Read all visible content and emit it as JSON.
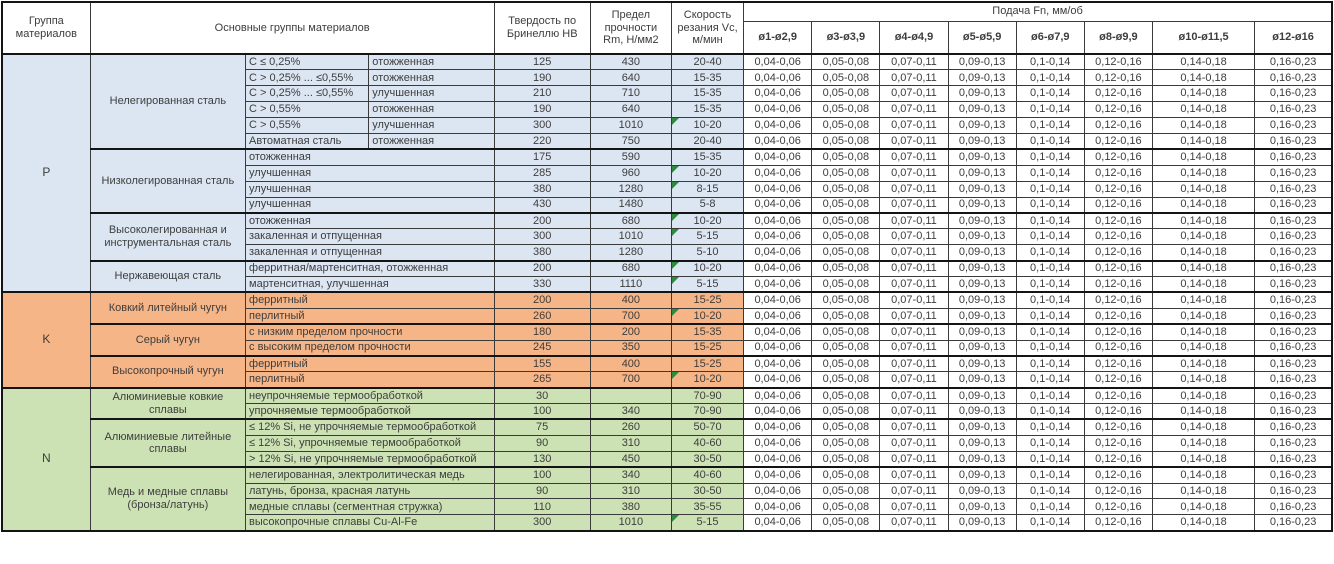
{
  "header": {
    "col_group": "Группа материалов",
    "col_main": "Основные группы материалов",
    "col_hb": "Твердость по Бринеллю HB",
    "col_rm": "Предел прочности Rm, Н/мм2",
    "col_vc": "Скорость резания Vc, м/мин",
    "feed_title": "Подача Fn, мм/об",
    "feed_cols": [
      "ø1-ø2,9",
      "ø3-ø3,9",
      "ø4-ø4,9",
      "ø5-ø5,9",
      "ø6-ø7,9",
      "ø8-ø9,9",
      "ø10-ø11,5",
      "ø12-ø16"
    ]
  },
  "colors": {
    "p": "#dce6f2",
    "k": "#f6b587",
    "n": "#cde2b4",
    "marker": "#2d8a3e",
    "border": "#141414",
    "text": "#3d3d3d"
  },
  "feed_values": [
    "0,04-0,06",
    "0,05-0,08",
    "0,07-0,11",
    "0,09-0,13",
    "0,1-0,14",
    "0,12-0,16",
    "0,14-0,18",
    "0,16-0,23"
  ],
  "groups": [
    {
      "code": "P",
      "color_key": "p",
      "subgroups": [
        {
          "name": "Нелегированная сталь",
          "split": true,
          "rows": [
            {
              "c1": "C ≤ 0,25%",
              "c2": "отожженная",
              "hb": "125",
              "rm": "430",
              "vc": "20-40",
              "mark": false
            },
            {
              "c1": "C > 0,25% ... ≤0,55%",
              "c2": "отожженная",
              "hb": "190",
              "rm": "640",
              "vc": "15-35",
              "mark": false
            },
            {
              "c1": "C > 0,25% ... ≤0,55%",
              "c2": "улучшенная",
              "hb": "210",
              "rm": "710",
              "vc": "15-35",
              "mark": false
            },
            {
              "c1": "C > 0,55%",
              "c2": "отожженная",
              "hb": "190",
              "rm": "640",
              "vc": "15-35",
              "mark": false
            },
            {
              "c1": "C > 0,55%",
              "c2": "улучшенная",
              "hb": "300",
              "rm": "1010",
              "vc": "10-20",
              "mark": true
            },
            {
              "c1": "Автоматная сталь",
              "c2": "отожженная",
              "hb": "220",
              "rm": "750",
              "vc": "20-40",
              "mark": false
            }
          ]
        },
        {
          "name": "Низколегированная сталь",
          "split": false,
          "rows": [
            {
              "desc": "отожженная",
              "hb": "175",
              "rm": "590",
              "vc": "15-35",
              "mark": false
            },
            {
              "desc": "улучшенная",
              "hb": "285",
              "rm": "960",
              "vc": "10-20",
              "mark": true
            },
            {
              "desc": "улучшенная",
              "hb": "380",
              "rm": "1280",
              "vc": "8-15",
              "mark": true
            },
            {
              "desc": "улучшенная",
              "hb": "430",
              "rm": "1480",
              "vc": "5-8",
              "mark": false
            }
          ]
        },
        {
          "name": "Высоколегированная и инструментальная сталь",
          "split": false,
          "rows": [
            {
              "desc": "отожженная",
              "hb": "200",
              "rm": "680",
              "vc": "10-20",
              "mark": true
            },
            {
              "desc": "закаленная и отпущенная",
              "hb": "300",
              "rm": "1010",
              "vc": "5-15",
              "mark": true
            },
            {
              "desc": "закаленная и отпущенная",
              "hb": "380",
              "rm": "1280",
              "vc": "5-10",
              "mark": false
            }
          ]
        },
        {
          "name": "Нержавеющая сталь",
          "split": false,
          "rows": [
            {
              "desc": "ферритная/мартенситная, отожженная",
              "hb": "200",
              "rm": "680",
              "vc": "10-20",
              "mark": true
            },
            {
              "desc": "мартенситная, улучшенная",
              "hb": "330",
              "rm": "1110",
              "vc": "5-15",
              "mark": true
            }
          ]
        }
      ]
    },
    {
      "code": "K",
      "color_key": "k",
      "subgroups": [
        {
          "name": "Ковкий литейный чугун",
          "split": false,
          "rows": [
            {
              "desc": "ферритный",
              "hb": "200",
              "rm": "400",
              "vc": "15-25",
              "mark": false
            },
            {
              "desc": "перлитный",
              "hb": "260",
              "rm": "700",
              "vc": "10-20",
              "mark": true
            }
          ]
        },
        {
          "name": "Серый чугун",
          "split": false,
          "rows": [
            {
              "desc": "с низким пределом прочности",
              "hb": "180",
              "rm": "200",
              "vc": "15-35",
              "mark": false
            },
            {
              "desc": "с высоким пределом прочности",
              "hb": "245",
              "rm": "350",
              "vc": "15-25",
              "mark": false
            }
          ]
        },
        {
          "name": "Высокопрочный чугун",
          "split": false,
          "rows": [
            {
              "desc": "ферритный",
              "hb": "155",
              "rm": "400",
              "vc": "15-25",
              "mark": false
            },
            {
              "desc": "перлитный",
              "hb": "265",
              "rm": "700",
              "vc": "10-20",
              "mark": true
            }
          ]
        }
      ]
    },
    {
      "code": "N",
      "color_key": "n",
      "subgroups": [
        {
          "name": "Алюминиевые ковкие сплавы",
          "split": false,
          "rows": [
            {
              "desc": "неупрочняемые термообработкой",
              "hb": "30",
              "rm": "",
              "vc": "70-90",
              "mark": false
            },
            {
              "desc": "упрочняемые термообработкой",
              "hb": "100",
              "rm": "340",
              "vc": "70-90",
              "mark": false
            }
          ]
        },
        {
          "name": "Алюминиевые литейные сплавы",
          "split": false,
          "rows": [
            {
              "desc": "≤ 12% Si, не упрочняемые термообработкой",
              "hb": "75",
              "rm": "260",
              "vc": "50-70",
              "mark": false
            },
            {
              "desc": "≤ 12% Si, упрочняемые термообработкой",
              "hb": "90",
              "rm": "310",
              "vc": "40-60",
              "mark": false
            },
            {
              "desc": "> 12% Si, не упрочняемые термообработкой",
              "hb": "130",
              "rm": "450",
              "vc": "30-50",
              "mark": false
            }
          ]
        },
        {
          "name": "Медь и медные сплавы (бронза/латунь)",
          "split": false,
          "rows": [
            {
              "desc": "нелегированная, электролитическая медь",
              "hb": "100",
              "rm": "340",
              "vc": "40-60",
              "mark": false
            },
            {
              "desc": "латунь, бронза, красная латунь",
              "hb": "90",
              "rm": "310",
              "vc": "30-50",
              "mark": false
            },
            {
              "desc": "медные сплавы (сегментная стружка)",
              "hb": "110",
              "rm": "380",
              "vc": "35-55",
              "mark": false
            },
            {
              "desc": "высокопрочные сплавы Cu-Al-Fe",
              "hb": "300",
              "rm": "1010",
              "vc": "5-15",
              "mark": true
            }
          ]
        }
      ]
    }
  ]
}
